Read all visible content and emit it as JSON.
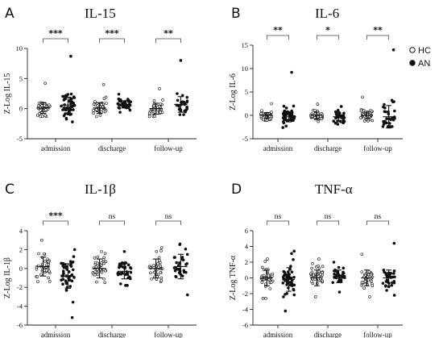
{
  "chart_data": [
    {
      "type": "scatter",
      "letter": "A",
      "title": "IL-15",
      "ylabel": "Z-Log IL-15",
      "ylim": [
        -5,
        10
      ],
      "yticks": [
        -5,
        0,
        5,
        10
      ],
      "categories": [
        "admission",
        "discharge",
        "follow-up"
      ],
      "significance": [
        "***",
        "***",
        "**"
      ],
      "groups": [
        {
          "category": "admission",
          "series": "HC",
          "mean": 0.1,
          "sd": 0.9,
          "min": -1.3,
          "max": 4.2,
          "n": 40
        },
        {
          "category": "admission",
          "series": "AN",
          "mean": 0.6,
          "sd": 1.3,
          "min": -2.2,
          "max": 8.7,
          "n": 46
        },
        {
          "category": "discharge",
          "series": "HC",
          "mean": 0.1,
          "sd": 0.9,
          "min": -1.3,
          "max": 4.0,
          "n": 40
        },
        {
          "category": "discharge",
          "series": "AN",
          "mean": 0.7,
          "sd": 0.6,
          "min": -0.6,
          "max": 2.4,
          "n": 36
        },
        {
          "category": "follow-up",
          "series": "HC",
          "mean": 0.0,
          "sd": 0.9,
          "min": -1.3,
          "max": 3.3,
          "n": 38
        },
        {
          "category": "follow-up",
          "series": "AN",
          "mean": 0.7,
          "sd": 1.3,
          "min": -1.0,
          "max": 8.0,
          "n": 30
        }
      ]
    },
    {
      "type": "scatter",
      "letter": "B",
      "title": "IL-6",
      "ylabel": "Z-Log IL-6",
      "ylim": [
        -5,
        15
      ],
      "yticks": [
        -5,
        0,
        5,
        10,
        15
      ],
      "categories": [
        "admission",
        "discharge",
        "follow-up"
      ],
      "significance": [
        "**",
        "*",
        "**"
      ],
      "groups": [
        {
          "category": "admission",
          "series": "HC",
          "mean": 0.0,
          "sd": 0.6,
          "min": -1.1,
          "max": 2.5,
          "n": 40
        },
        {
          "category": "admission",
          "series": "AN",
          "mean": -0.3,
          "sd": 1.1,
          "min": -2.6,
          "max": 9.2,
          "n": 46
        },
        {
          "category": "discharge",
          "series": "HC",
          "mean": 0.0,
          "sd": 0.7,
          "min": -1.3,
          "max": 2.4,
          "n": 40
        },
        {
          "category": "discharge",
          "series": "AN",
          "mean": -0.3,
          "sd": 0.8,
          "min": -1.9,
          "max": 1.9,
          "n": 36
        },
        {
          "category": "follow-up",
          "series": "HC",
          "mean": 0.0,
          "sd": 0.7,
          "min": -1.2,
          "max": 3.9,
          "n": 38
        },
        {
          "category": "follow-up",
          "series": "AN",
          "mean": -0.3,
          "sd": 2.4,
          "min": -2.4,
          "max": 14.0,
          "n": 30
        }
      ]
    },
    {
      "type": "scatter",
      "letter": "C",
      "title": "IL-1β",
      "ylabel": "Z-Log IL-1β",
      "ylim": [
        -6,
        4
      ],
      "yticks": [
        -6,
        -4,
        -2,
        0,
        2,
        4
      ],
      "categories": [
        "admission",
        "discharge",
        "follow-up"
      ],
      "significance": [
        "***",
        "ns",
        "ns"
      ],
      "groups": [
        {
          "category": "admission",
          "series": "HC",
          "mean": 0.2,
          "sd": 1.0,
          "min": -1.4,
          "max": 3.0,
          "n": 40
        },
        {
          "category": "admission",
          "series": "AN",
          "mean": -0.8,
          "sd": 1.3,
          "min": -5.2,
          "max": 2.0,
          "n": 46
        },
        {
          "category": "discharge",
          "series": "HC",
          "mean": 0.0,
          "sd": 1.0,
          "min": -1.5,
          "max": 1.8,
          "n": 40
        },
        {
          "category": "discharge",
          "series": "AN",
          "mean": -0.3,
          "sd": 0.8,
          "min": -1.8,
          "max": 1.8,
          "n": 36
        },
        {
          "category": "follow-up",
          "series": "HC",
          "mean": 0.0,
          "sd": 1.0,
          "min": -1.4,
          "max": 2.2,
          "n": 38
        },
        {
          "category": "follow-up",
          "series": "AN",
          "mean": 0.2,
          "sd": 1.3,
          "min": -2.8,
          "max": 2.6,
          "n": 30
        }
      ]
    },
    {
      "type": "scatter",
      "letter": "D",
      "title": "TNF-α",
      "ylabel": "Z-Log TNF-α",
      "ylim": [
        -6,
        6
      ],
      "yticks": [
        -6,
        -4,
        -2,
        0,
        2,
        4,
        6
      ],
      "categories": [
        "admission",
        "discharge",
        "follow-up"
      ],
      "significance": [
        "ns",
        "ns",
        "ns"
      ],
      "groups": [
        {
          "category": "admission",
          "series": "HC",
          "mean": 0.0,
          "sd": 1.0,
          "min": -2.6,
          "max": 2.4,
          "n": 40
        },
        {
          "category": "admission",
          "series": "AN",
          "mean": -0.2,
          "sd": 1.5,
          "min": -4.2,
          "max": 3.4,
          "n": 46
        },
        {
          "category": "discharge",
          "series": "HC",
          "mean": 0.0,
          "sd": 1.0,
          "min": -2.4,
          "max": 2.4,
          "n": 40
        },
        {
          "category": "discharge",
          "series": "AN",
          "mean": 0.2,
          "sd": 0.8,
          "min": -1.8,
          "max": 2.0,
          "n": 36
        },
        {
          "category": "follow-up",
          "series": "HC",
          "mean": 0.0,
          "sd": 1.0,
          "min": -2.4,
          "max": 3.0,
          "n": 38
        },
        {
          "category": "follow-up",
          "series": "AN",
          "mean": 0.0,
          "sd": 1.0,
          "min": -2.2,
          "max": 4.4,
          "n": 30
        }
      ]
    }
  ],
  "legend": {
    "placement": "right",
    "items": [
      {
        "label": "HC",
        "marker": "open-circle"
      },
      {
        "label": "AN",
        "marker": "filled-circle"
      }
    ]
  }
}
